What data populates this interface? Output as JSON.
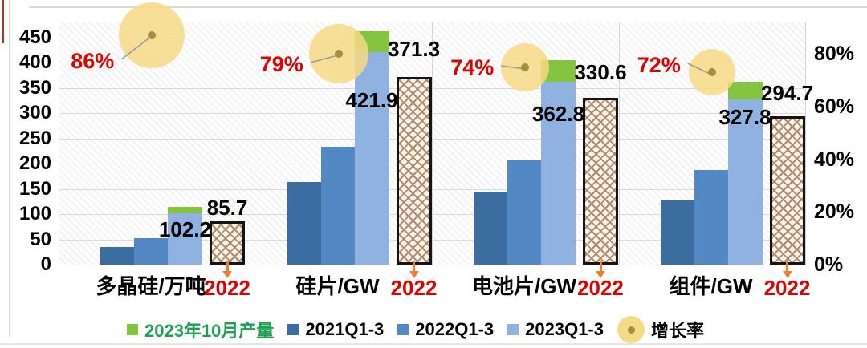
{
  "chart_data": {
    "type": "bar",
    "title": "",
    "categories": [
      "多晶硅/万吨",
      "硅片/GW",
      "电池片/GW",
      "组件/GW"
    ],
    "category_keys": [
      "polysilicon",
      "wafer",
      "cell",
      "module"
    ],
    "series": [
      {
        "key": "2021q13",
        "name": "2021Q1-3",
        "values": [
          35,
          164,
          144,
          128
        ]
      },
      {
        "key": "2022q13",
        "name": "2022Q1-3",
        "values": [
          53,
          234,
          207,
          188
        ]
      },
      {
        "key": "2023q13",
        "name": "2023Q1-3",
        "values": [
          102.2,
          421.9,
          362.8,
          327.8
        ],
        "value_labels": [
          "102.2",
          "421.9",
          "362.8",
          "327.8"
        ]
      },
      {
        "key": "oct2023",
        "name": "2023年10月产量",
        "values": [
          13,
          41,
          42,
          34
        ],
        "stacked_on": "2023q13"
      },
      {
        "key": "full2022",
        "name": "2022",
        "values": [
          85.7,
          371.3,
          330.6,
          294.7
        ],
        "value_labels": [
          "85.7",
          "371.3",
          "330.6",
          "294.7"
        ],
        "bar_year_label": "2022"
      }
    ],
    "growth": {
      "name": "增长率",
      "values_pct": [
        86,
        79,
        74,
        72
      ],
      "labels": [
        "86%",
        "79%",
        "74%",
        "72%"
      ]
    },
    "left_axis": {
      "min": 0,
      "max": 450,
      "step": 50,
      "tick_labels": [
        "0",
        "50",
        "100",
        "150",
        "200",
        "250",
        "300",
        "350",
        "400",
        "450"
      ]
    },
    "right_axis": {
      "min": 0,
      "max": 80,
      "step": 20,
      "tick_labels": [
        "0%",
        "20%",
        "40%",
        "60%",
        "80%"
      ]
    },
    "grid": "on",
    "legend_position": "bottom"
  },
  "legend": {
    "items": [
      {
        "label": "2023年10月产量",
        "marker": "square",
        "color": "#84c440",
        "text_color": "#1ca04e"
      },
      {
        "label": "2021Q1-3",
        "marker": "square",
        "color": "#3c6da1"
      },
      {
        "label": "2022Q1-3",
        "marker": "square",
        "color": "#5289c5"
      },
      {
        "label": "2023Q1-3",
        "marker": "square",
        "color": "#8fb2e0"
      },
      {
        "label": "增长率",
        "marker": "bubble",
        "color": "#f5db86"
      }
    ]
  },
  "colors": {
    "bar_2021": "#3c6da1",
    "bar_2022": "#5289c5",
    "bar_2023": "#8fb2e0",
    "oct_green": "#84c440",
    "hatch_border": "#141414",
    "bubble_fill": "rgba(246,217,133,0.85)",
    "bubble_dot": "#a18f3b",
    "growth_red": "#e00000",
    "year_red": "#e00000",
    "arrow_orange": "#ed7d31",
    "value_text": "#000000",
    "leader_line": "#9a9a9a"
  }
}
